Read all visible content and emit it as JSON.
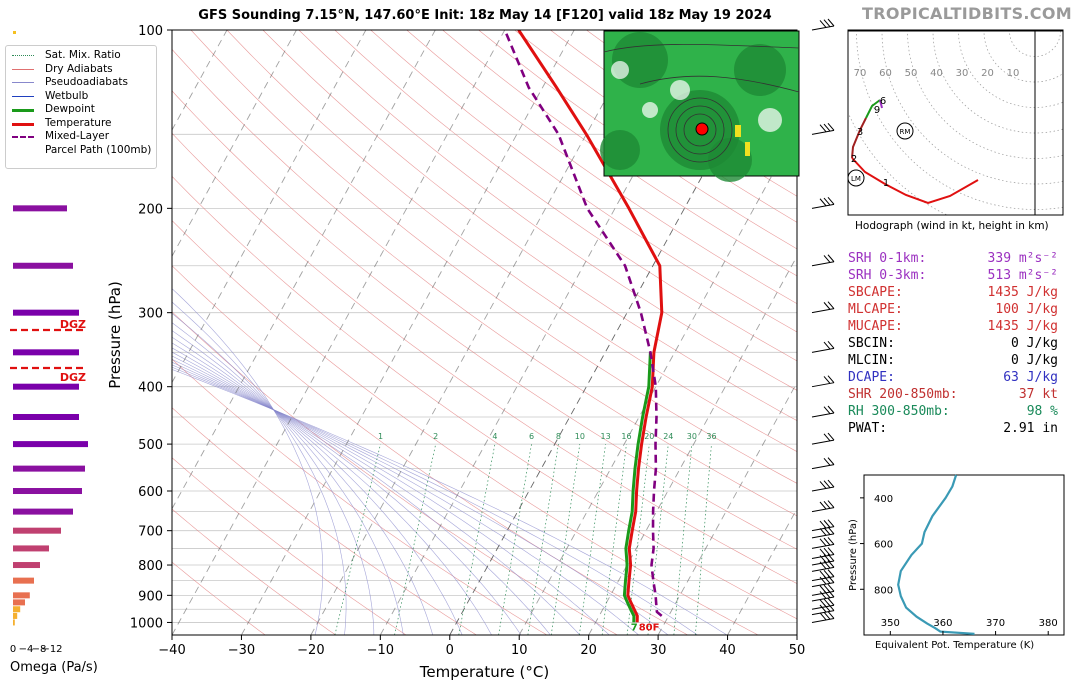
{
  "header": {
    "title": "GFS Sounding 7.15°N, 147.60°E Init: 18z May 14 [F120] valid 18z May 19 2024",
    "brand": "TROPICALTIDBITS.COM"
  },
  "legend": [
    {
      "label": "Sat. Mix. Ratio",
      "color": "#2e8b57",
      "style": "dotted"
    },
    {
      "label": "Dry Adiabats",
      "color": "#e07070",
      "style": "solid"
    },
    {
      "label": "Pseudoadiabats",
      "color": "#8888cc",
      "style": "solid"
    },
    {
      "label": "Wetbulb",
      "color": "#1f3fbf",
      "style": "solid"
    },
    {
      "label": "Dewpoint",
      "color": "#1a9a1a",
      "style": "solid"
    },
    {
      "label": "Temperature",
      "color": "#e01010",
      "style": "solid"
    },
    {
      "label": "Mixed-Layer",
      "color": "#800080",
      "style": "dashed"
    },
    {
      "label": "Parcel Path (100mb)",
      "color": "",
      "style": "none"
    }
  ],
  "chart_data": [
    {
      "type": "line",
      "name": "skew-t",
      "xlabel": "Temperature (°C)",
      "ylabel": "Pressure (hPa)",
      "xlim": [
        -40,
        50
      ],
      "ylim": [
        1050,
        100
      ],
      "y_scale": "log",
      "x_ticks": [
        -40,
        -30,
        -20,
        -10,
        0,
        10,
        20,
        30,
        40,
        50
      ],
      "y_ticks": [
        100,
        200,
        300,
        400,
        500,
        600,
        700,
        800,
        900,
        1000
      ],
      "mixing_ratio_labels": [
        "1",
        "2",
        "4",
        "6",
        "8",
        "10",
        "13",
        "16",
        "20",
        "24",
        "30",
        "36"
      ],
      "surface_label": "80F",
      "surface_label_value": "7",
      "series": [
        {
          "key": "temperature",
          "color": "#e01010",
          "points": [
            [
              26,
              1000
            ],
            [
              25.5,
              975
            ],
            [
              24.5,
              950
            ],
            [
              23.5,
              925
            ],
            [
              22.5,
              900
            ],
            [
              21.5,
              850
            ],
            [
              20.5,
              800
            ],
            [
              19,
              750
            ],
            [
              18,
              700
            ],
            [
              17,
              650
            ],
            [
              15.5,
              600
            ],
            [
              14,
              550
            ],
            [
              12.5,
              500
            ],
            [
              11,
              450
            ],
            [
              9.5,
              400
            ],
            [
              7,
              350
            ],
            [
              5,
              300
            ],
            [
              1,
              250
            ],
            [
              -8,
              200
            ],
            [
              -20,
              150
            ],
            [
              -28,
              125
            ],
            [
              -38,
              100
            ]
          ]
        },
        {
          "key": "dewpoint",
          "color": "#1a9a1a",
          "points": [
            [
              25.5,
              1000
            ],
            [
              25,
              975
            ],
            [
              24,
              950
            ],
            [
              23,
              925
            ],
            [
              22,
              900
            ],
            [
              21,
              850
            ],
            [
              20,
              800
            ],
            [
              18.5,
              750
            ],
            [
              17.5,
              700
            ],
            [
              16.5,
              650
            ],
            [
              15,
              600
            ],
            [
              13.5,
              550
            ],
            [
              12,
              500
            ],
            [
              10.5,
              450
            ],
            [
              9,
              400
            ],
            [
              6.5,
              350
            ]
          ]
        },
        {
          "key": "parcel",
          "color": "#800080",
          "points": [
            [
              29,
              975
            ],
            [
              28,
              960
            ],
            [
              27.5,
              940
            ],
            [
              26.5,
              900
            ],
            [
              25,
              850
            ],
            [
              23.5,
              800
            ],
            [
              22.5,
              750
            ],
            [
              21,
              700
            ],
            [
              19.5,
              650
            ],
            [
              18,
              600
            ],
            [
              16.5,
              550
            ],
            [
              14.5,
              500
            ],
            [
              12.5,
              450
            ],
            [
              10,
              400
            ],
            [
              6.5,
              350
            ],
            [
              2,
              300
            ],
            [
              -4,
              250
            ],
            [
              -14,
              200
            ],
            [
              -24,
              150
            ],
            [
              -32,
              125
            ],
            [
              -40,
              100
            ]
          ]
        }
      ],
      "annotations": [
        "DGZ",
        "DGZ"
      ]
    },
    {
      "type": "bar",
      "name": "omega",
      "xlabel": "Omega (Pa/s)",
      "x_ticks": [
        "0",
        "−4",
        "−8",
        "−12"
      ],
      "values": [
        -9,
        -10,
        -11,
        -11,
        -11,
        -11,
        -12.5,
        -12,
        -11.5,
        -10,
        -8,
        -6,
        -4.5,
        -3.5,
        -2.8,
        -2,
        -1.2,
        -0.7,
        -0.3
      ]
    },
    {
      "type": "line",
      "name": "theta-e",
      "xlabel": "Equivalent Pot. Temperature (K)",
      "ylabel": "Pressure (hPa)",
      "xlim": [
        345,
        383
      ],
      "ylim": [
        1000,
        300
      ],
      "x_ticks": [
        350,
        360,
        370,
        380
      ],
      "y_ticks": [
        400,
        600,
        800
      ],
      "color": "#3a9ab5",
      "points": [
        [
          362.5,
          300
        ],
        [
          361.8,
          350
        ],
        [
          360.5,
          400
        ],
        [
          358,
          480
        ],
        [
          356.5,
          550
        ],
        [
          356,
          600
        ],
        [
          354,
          650
        ],
        [
          352,
          720
        ],
        [
          351.5,
          780
        ],
        [
          352,
          830
        ],
        [
          353,
          880
        ],
        [
          355,
          920
        ],
        [
          357,
          950
        ],
        [
          358.5,
          970
        ],
        [
          359.5,
          985
        ],
        [
          366,
          995
        ]
      ]
    },
    {
      "type": "line",
      "name": "hodograph",
      "caption": "Hodograph (wind in kt, height in km)",
      "ring_labels": [
        "70",
        "60",
        "50",
        "40",
        "30",
        "20",
        "10"
      ],
      "point_labels": [
        "1",
        "2",
        "3",
        "6",
        "9"
      ],
      "markers": [
        "RM",
        "LM"
      ]
    }
  ],
  "stats": [
    {
      "label": "SRH 0-1km:",
      "value": "339",
      "unit": "m²s⁻²",
      "color": "#9b30c0"
    },
    {
      "label": "SRH 0-3km:",
      "value": "513",
      "unit": "m²s⁻²",
      "color": "#9b30c0"
    },
    {
      "label": "SBCAPE:",
      "value": "1435 J/kg",
      "unit": "",
      "color": "#d03030"
    },
    {
      "label": "MLCAPE:",
      "value": "100 J/kg",
      "unit": "",
      "color": "#d03030"
    },
    {
      "label": "MUCAPE:",
      "value": "1435 J/kg",
      "unit": "",
      "color": "#d03030"
    },
    {
      "label": "SBCIN:",
      "value": "0 J/kg",
      "unit": "",
      "color": "#000000"
    },
    {
      "label": "MLCIN:",
      "value": "0 J/kg",
      "unit": "",
      "color": "#000000"
    },
    {
      "label": "DCAPE:",
      "value": "63 J/kg",
      "unit": "",
      "color": "#3030c0"
    },
    {
      "label": "SHR 200-850mb:",
      "value": "37 kt",
      "unit": "",
      "color": "#c03030"
    },
    {
      "label": "RH 300-850mb:",
      "value": "98 %",
      "unit": "",
      "color": "#1a8a5a"
    },
    {
      "label": "PWAT:",
      "value": "2.91 in",
      "unit": "",
      "color": "#000000"
    }
  ],
  "colors": {
    "temperature": "#e01010",
    "dewpoint": "#1a9a1a",
    "parcel": "#800080",
    "dry_adiabat": "#e07070",
    "pseudoadiabat": "#8888cc",
    "mixing_ratio": "#2e8b57",
    "isotherm": "#555555",
    "dgz": "#e01010",
    "theta_e": "#3a9ab5"
  }
}
